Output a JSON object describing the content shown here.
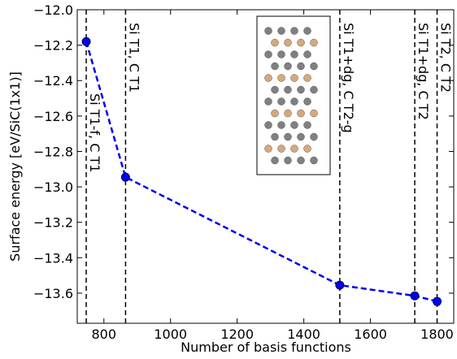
{
  "chart_data": {
    "type": "line",
    "x_label": "Number of basis functions",
    "y_label": "Surface energy [eV/SiC(1x1)]",
    "x": [
      747,
      865,
      1508,
      1733,
      1800
    ],
    "series": [
      {
        "color": "#0000ee",
        "values": [
          -12.18,
          -12.945,
          -13.555,
          -13.615,
          -13.647
        ]
      }
    ],
    "xlim": [
      720,
      1850
    ],
    "ylim": [
      -13.77,
      -12.0
    ],
    "xticks": [
      800,
      1000,
      1200,
      1400,
      1600,
      1800
    ],
    "yticks": [
      {
        "value": -12.0,
        "label": "−12.0"
      },
      {
        "value": -12.2,
        "label": "−12.2"
      },
      {
        "value": -12.4,
        "label": "−12.4"
      },
      {
        "value": -12.6,
        "label": "−12.6"
      },
      {
        "value": -12.8,
        "label": "−12.8"
      },
      {
        "value": -13.0,
        "label": "−13.0"
      },
      {
        "value": -13.2,
        "label": "−13.2"
      },
      {
        "value": -13.4,
        "label": "−13.4"
      },
      {
        "value": -13.6,
        "label": "−13.6"
      }
    ],
    "annotations": [
      {
        "x": 747,
        "text": "Si T1-f, C T1"
      },
      {
        "x": 865,
        "text": "Si T1, C T1"
      },
      {
        "x": 1508,
        "text": "Si T1+dg, C T2-g"
      },
      {
        "x": 1733,
        "text": "Si T1+dg, C T2"
      },
      {
        "x": 1800,
        "text": "Si T2, C T2"
      }
    ]
  }
}
